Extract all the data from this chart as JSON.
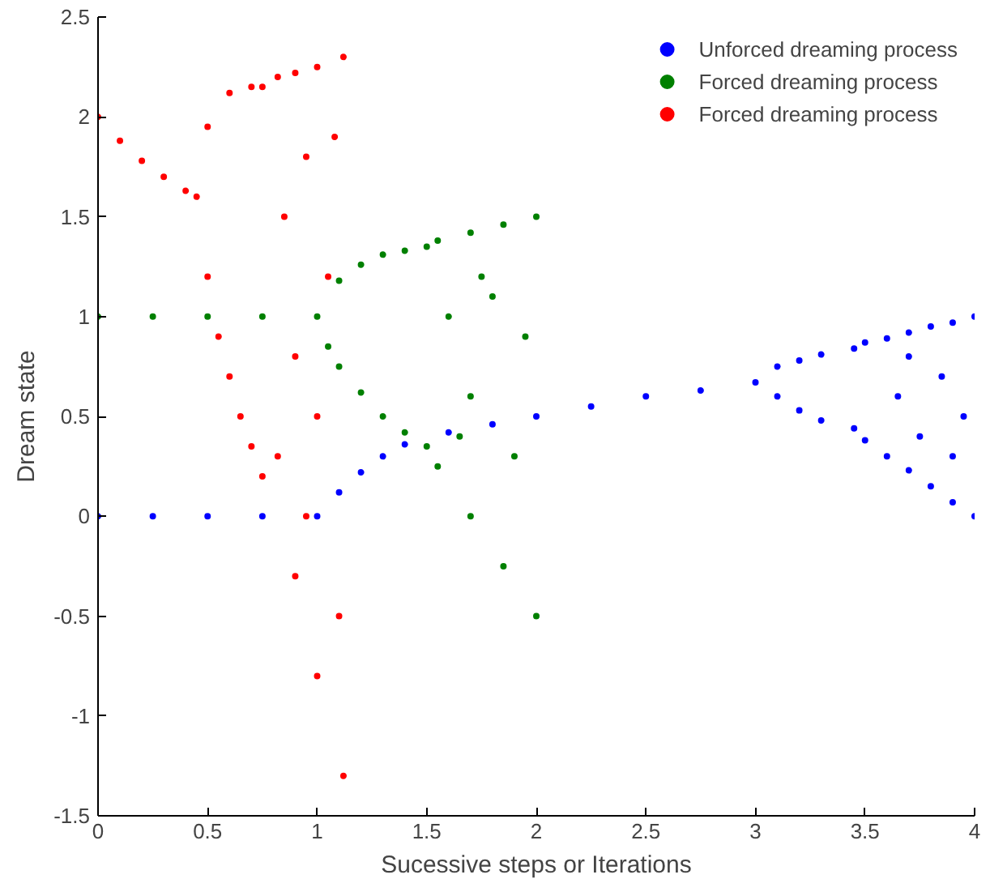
{
  "chart_data": {
    "type": "scatter",
    "xlabel": "Sucessive steps or Iterations",
    "ylabel": "Dream state",
    "xlim": [
      0,
      4
    ],
    "ylim": [
      -1.5,
      2.5
    ],
    "xticks": [
      0,
      0.5,
      1,
      1.5,
      2,
      2.5,
      3,
      3.5,
      4
    ],
    "yticks": [
      -1.5,
      -1,
      -0.5,
      0,
      0.5,
      1,
      1.5,
      2,
      2.5
    ],
    "grid": false,
    "legend": "top right",
    "marker": "circle",
    "series": [
      {
        "name": "Unforced dreaming process",
        "color": "#0000ff",
        "x": [
          0,
          0.25,
          0.5,
          0.75,
          1,
          1.1,
          1.2,
          1.3,
          1.4,
          1.6,
          1.8,
          2,
          2.25,
          2.5,
          2.75,
          3,
          3.1,
          3.2,
          3.3,
          3.45,
          3.5,
          3.1,
          3.2,
          3.3,
          3.45,
          3.5,
          3.6,
          3.7,
          3.8,
          3.9,
          4,
          3.6,
          3.7,
          3.8,
          3.9,
          4,
          3.65,
          3.75,
          3.85,
          3.95,
          3.7,
          3.9
        ],
        "values": [
          0,
          0,
          0,
          0,
          0,
          0.12,
          0.22,
          0.3,
          0.36,
          0.42,
          0.46,
          0.5,
          0.55,
          0.6,
          0.63,
          0.67,
          0.75,
          0.78,
          0.81,
          0.84,
          0.87,
          0.6,
          0.53,
          0.48,
          0.44,
          0.38,
          0.89,
          0.92,
          0.95,
          0.97,
          1.0,
          0.3,
          0.23,
          0.15,
          0.07,
          0.0,
          0.6,
          0.4,
          0.7,
          0.5,
          0.8,
          0.3
        ]
      },
      {
        "name": "Forced dreaming process",
        "color": "#008000",
        "x": [
          0,
          0.25,
          0.5,
          0.75,
          1,
          1.1,
          1.2,
          1.3,
          1.4,
          1.5,
          1.05,
          1.1,
          1.2,
          1.3,
          1.4,
          1.5,
          1.55,
          1.7,
          1.85,
          2,
          1.55,
          1.7,
          1.85,
          2,
          1.6,
          1.7,
          1.8,
          1.9,
          1.95,
          1.65,
          1.75
        ],
        "values": [
          1,
          1,
          1,
          1,
          1,
          1.18,
          1.26,
          1.31,
          1.33,
          1.35,
          0.85,
          0.75,
          0.62,
          0.5,
          0.42,
          0.35,
          1.38,
          1.42,
          1.46,
          1.5,
          0.25,
          0.0,
          -0.25,
          -0.5,
          1.0,
          0.6,
          1.1,
          0.3,
          0.9,
          0.4,
          1.2
        ]
      },
      {
        "name": "Forced dreaming process",
        "color": "#ff0000",
        "x": [
          0,
          0.1,
          0.2,
          0.3,
          0.4,
          0.45,
          0.5,
          0.6,
          0.7,
          0.75,
          0.5,
          0.55,
          0.6,
          0.65,
          0.7,
          0.75,
          0.82,
          0.9,
          1,
          1.12,
          0.82,
          0.9,
          1,
          1.12,
          0.85,
          0.9,
          0.95,
          1.0,
          1.05,
          1.1,
          1.08,
          0.95
        ],
        "values": [
          2,
          1.88,
          1.78,
          1.7,
          1.63,
          1.6,
          1.95,
          2.12,
          2.15,
          2.15,
          1.2,
          0.9,
          0.7,
          0.5,
          0.35,
          0.2,
          2.2,
          2.22,
          2.25,
          2.3,
          0.3,
          -0.3,
          -0.8,
          -1.3,
          1.5,
          0.8,
          1.8,
          0.5,
          1.2,
          -0.5,
          1.9,
          0.0
        ]
      }
    ]
  }
}
